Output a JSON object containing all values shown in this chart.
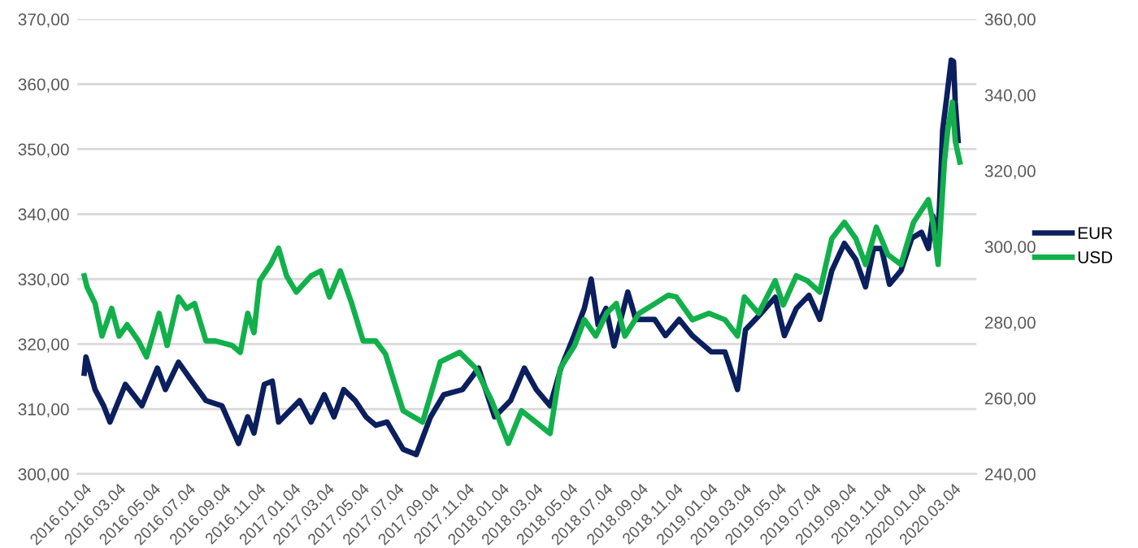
{
  "chart_data": {
    "type": "line",
    "grid": "y",
    "legend": "right",
    "marker": "none",
    "line_style": "solid",
    "xlim": [
      "2015-12-23",
      "2020-04-13"
    ],
    "xticks": [
      {
        "value": "2016-01-04",
        "label": "2016.01.04"
      },
      {
        "value": "2016-03-04",
        "label": "2016.03.04"
      },
      {
        "value": "2016-05-04",
        "label": "2016.05.04"
      },
      {
        "value": "2016-07-04",
        "label": "2016.07.04"
      },
      {
        "value": "2016-09-04",
        "label": "2016.09.04"
      },
      {
        "value": "2016-11-04",
        "label": "2016.11.04"
      },
      {
        "value": "2017-01-04",
        "label": "2017.01.04"
      },
      {
        "value": "2017-03-04",
        "label": "2017.03.04"
      },
      {
        "value": "2017-05-04",
        "label": "2017.05.04"
      },
      {
        "value": "2017-07-04",
        "label": "2017.07.04"
      },
      {
        "value": "2017-09-04",
        "label": "2017.09.04"
      },
      {
        "value": "2017-11-04",
        "label": "2017.11.04"
      },
      {
        "value": "2018-01-04",
        "label": "2018.01.04"
      },
      {
        "value": "2018-03-04",
        "label": "2018.03.04"
      },
      {
        "value": "2018-05-04",
        "label": "2018.05.04"
      },
      {
        "value": "2018-07-04",
        "label": "2018.07.04"
      },
      {
        "value": "2018-09-04",
        "label": "2018.09.04"
      },
      {
        "value": "2018-11-04",
        "label": "2018.11.04"
      },
      {
        "value": "2019-01-04",
        "label": "2019.01.04"
      },
      {
        "value": "2019-03-04",
        "label": "2019.03.04"
      },
      {
        "value": "2019-05-04",
        "label": "2019.05.04"
      },
      {
        "value": "2019-07-04",
        "label": "2019.07.04"
      },
      {
        "value": "2019-09-04",
        "label": "2019.09.04"
      },
      {
        "value": "2019-11-04",
        "label": "2019.11.04"
      },
      {
        "value": "2020-01-04",
        "label": "2020.01.04"
      },
      {
        "value": "2020-03-04",
        "label": "2020.03.04"
      }
    ],
    "ylim": [
      300,
      370
    ],
    "yticks": [
      {
        "value": 300,
        "label": "300,00"
      },
      {
        "value": 310,
        "label": "310,00"
      },
      {
        "value": 320,
        "label": "320,00"
      },
      {
        "value": 330,
        "label": "330,00"
      },
      {
        "value": 340,
        "label": "340,00"
      },
      {
        "value": 350,
        "label": "350,00"
      },
      {
        "value": 360,
        "label": "360,00"
      },
      {
        "value": 370,
        "label": "370,00"
      }
    ],
    "y2lim": [
      240,
      360
    ],
    "y2ticks": [
      {
        "value": 240,
        "label": "240,00"
      },
      {
        "value": 260,
        "label": "260,00"
      },
      {
        "value": 280,
        "label": "280,00"
      },
      {
        "value": 300,
        "label": "300,00"
      },
      {
        "value": 320,
        "label": "320,00"
      },
      {
        "value": 340,
        "label": "340,00"
      },
      {
        "value": 360,
        "label": "360,00"
      }
    ],
    "series": [
      {
        "name": "EUR",
        "color": "#0b1f5e",
        "axis": "y",
        "x": [
          "2016-01-04",
          "2016-01-07",
          "2016-01-23",
          "2016-02-07",
          "2016-02-18",
          "2016-03-16",
          "2016-04-14",
          "2016-05-11",
          "2016-05-25",
          "2016-06-17",
          "2016-07-07",
          "2016-08-04",
          "2016-09-01",
          "2016-09-30",
          "2016-10-16",
          "2016-10-27",
          "2016-11-14",
          "2016-11-28",
          "2016-12-09",
          "2017-01-15",
          "2017-02-04",
          "2017-02-27",
          "2017-03-16",
          "2017-04-02",
          "2017-04-22",
          "2017-05-11",
          "2017-05-28",
          "2017-06-17",
          "2017-07-15",
          "2017-08-07",
          "2017-09-01",
          "2017-09-24",
          "2017-10-27",
          "2017-11-24",
          "2017-12-22",
          "2018-01-19",
          "2018-02-12",
          "2018-03-05",
          "2018-03-29",
          "2018-04-17",
          "2018-05-10",
          "2018-05-28",
          "2018-06-09",
          "2018-06-21",
          "2018-07-05",
          "2018-07-19",
          "2018-08-12",
          "2018-08-26",
          "2018-09-28",
          "2018-10-17",
          "2018-11-10",
          "2018-12-03",
          "2019-01-05",
          "2019-01-29",
          "2019-02-20",
          "2019-03-06",
          "2019-04-02",
          "2019-04-27",
          "2019-05-13",
          "2019-06-03",
          "2019-06-25",
          "2019-07-14",
          "2019-08-04",
          "2019-08-26",
          "2019-09-15",
          "2019-10-02",
          "2019-10-16",
          "2019-10-30",
          "2019-11-13",
          "2019-12-03",
          "2019-12-22",
          "2020-01-08",
          "2020-01-20",
          "2020-01-28",
          "2020-02-06",
          "2020-02-14",
          "2020-02-20",
          "2020-02-29",
          "2020-03-04",
          "2020-03-07",
          "2020-03-12"
        ],
        "values": [
          315.5,
          318,
          313,
          310.5,
          308,
          313.8,
          310.5,
          316.3,
          313,
          317.2,
          314.7,
          311.3,
          310.5,
          304.7,
          308.8,
          306.3,
          313.8,
          314.3,
          308,
          311.3,
          308,
          312.2,
          308.8,
          313,
          311.3,
          308.8,
          307.5,
          308,
          303.8,
          303,
          308.8,
          312.2,
          313,
          316.3,
          308.8,
          311.3,
          316.3,
          313,
          310.5,
          316.3,
          321.3,
          325.5,
          330,
          323,
          325.5,
          319.7,
          328,
          323.8,
          323.8,
          321.3,
          323.8,
          321.3,
          318.8,
          318.8,
          313,
          322.2,
          324.7,
          327.2,
          321.3,
          325.5,
          327.5,
          323.8,
          331.3,
          335.5,
          333,
          328.8,
          334.7,
          334.7,
          329.2,
          331.3,
          336.3,
          337.2,
          334.7,
          339.7,
          336.3,
          353,
          357.2,
          363.7,
          363.5,
          357.2,
          351.3
        ]
      },
      {
        "name": "USD",
        "color": "#12b04b",
        "axis": "y2",
        "x": [
          "2016-01-04",
          "2016-01-09",
          "2016-01-23",
          "2016-02-04",
          "2016-02-21",
          "2016-03-05",
          "2016-03-19",
          "2016-04-08",
          "2016-04-22",
          "2016-05-14",
          "2016-05-28",
          "2016-06-17",
          "2016-07-01",
          "2016-07-15",
          "2016-08-04",
          "2016-08-21",
          "2016-09-19",
          "2016-10-03",
          "2016-10-16",
          "2016-10-27",
          "2016-11-06",
          "2016-11-25",
          "2016-12-09",
          "2016-12-23",
          "2017-01-09",
          "2017-02-04",
          "2017-02-21",
          "2017-03-08",
          "2017-03-27",
          "2017-04-16",
          "2017-05-06",
          "2017-05-28",
          "2017-06-14",
          "2017-07-15",
          "2017-08-18",
          "2017-09-18",
          "2017-10-22",
          "2017-11-19",
          "2017-12-17",
          "2018-01-15",
          "2018-02-07",
          "2018-03-04",
          "2018-03-29",
          "2018-04-16",
          "2018-05-11",
          "2018-05-28",
          "2018-06-17",
          "2018-07-06",
          "2018-07-23",
          "2018-08-07",
          "2018-09-01",
          "2018-09-29",
          "2018-10-22",
          "2018-11-05",
          "2018-12-03",
          "2019-01-01",
          "2019-01-29",
          "2019-02-20",
          "2019-03-04",
          "2019-03-29",
          "2019-04-27",
          "2019-05-11",
          "2019-06-03",
          "2019-06-22",
          "2019-07-14",
          "2019-08-04",
          "2019-08-26",
          "2019-09-15",
          "2019-10-02",
          "2019-10-21",
          "2019-11-10",
          "2019-12-03",
          "2019-12-25",
          "2020-01-20",
          "2020-01-28",
          "2020-02-06",
          "2020-02-17",
          "2020-02-23",
          "2020-03-02",
          "2020-03-07",
          "2020-03-15"
        ],
        "values": [
          292.3,
          289.3,
          285,
          276.4,
          283.7,
          276.4,
          279.4,
          275.1,
          270.9,
          282.4,
          273.9,
          286.7,
          283.7,
          285,
          275.1,
          275.1,
          273.9,
          272.1,
          282.4,
          277.3,
          291,
          295.3,
          299.6,
          292.3,
          288,
          292.3,
          293.6,
          286.7,
          293.6,
          285,
          275.1,
          275.1,
          271.7,
          256.7,
          253.7,
          269.6,
          272.1,
          267.9,
          259.3,
          248.1,
          256.7,
          253.7,
          250.7,
          267.9,
          273.9,
          280.7,
          276.4,
          282.4,
          285,
          276.4,
          282.4,
          285,
          287.2,
          286.7,
          280.7,
          282.4,
          280.7,
          276.4,
          286.7,
          282.4,
          291,
          284.6,
          292.3,
          291,
          288,
          302.1,
          306.4,
          302.1,
          295.3,
          305.1,
          297.9,
          295.3,
          306.4,
          312.4,
          306.4,
          295.3,
          322.3,
          330.9,
          338.1,
          327.9,
          322.3
        ]
      }
    ]
  }
}
